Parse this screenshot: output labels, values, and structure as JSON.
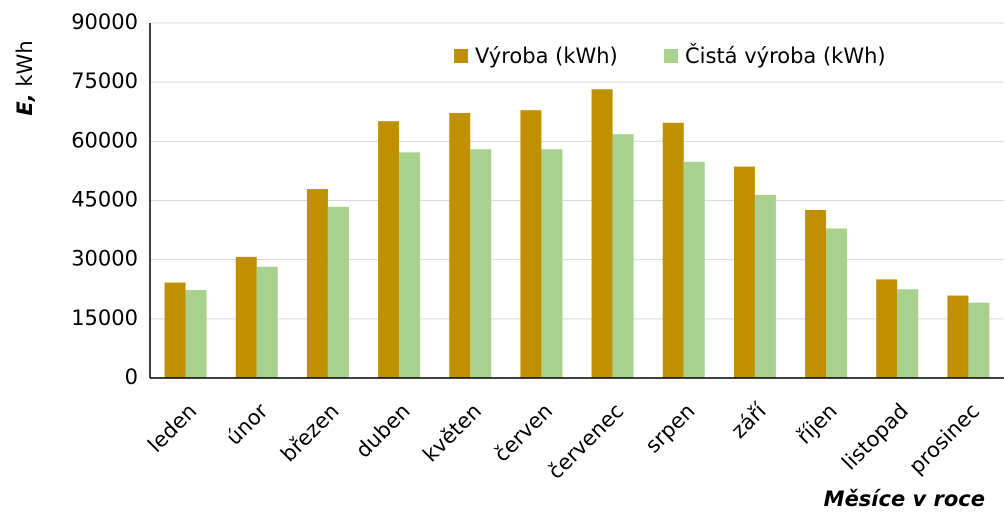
{
  "chart_data": {
    "type": "bar",
    "y_label_symbol": "E,",
    "y_label_unit": "kWh",
    "x_label": "Měsíce v roce",
    "categories": [
      "leden",
      "únor",
      "březen",
      "duben",
      "květen",
      "červen",
      "červenec",
      "srpen",
      "září",
      "říjen",
      "listopad",
      "prosinec"
    ],
    "series": [
      {
        "name": "Výroba (kWh)",
        "color": "#bf9000",
        "values": [
          24200,
          30700,
          47900,
          65100,
          67200,
          67900,
          73200,
          64700,
          53600,
          42600,
          25000,
          20900
        ]
      },
      {
        "name": "Čistá výroba (kWh)",
        "color": "#a9d18e",
        "values": [
          22300,
          28200,
          43400,
          57200,
          58000,
          58000,
          61800,
          54800,
          46400,
          37900,
          22500,
          19100
        ]
      }
    ],
    "ylim": [
      0,
      90000
    ],
    "yticks": [
      0,
      15000,
      30000,
      45000,
      60000,
      75000,
      90000
    ],
    "grid": true,
    "legend": "top"
  }
}
